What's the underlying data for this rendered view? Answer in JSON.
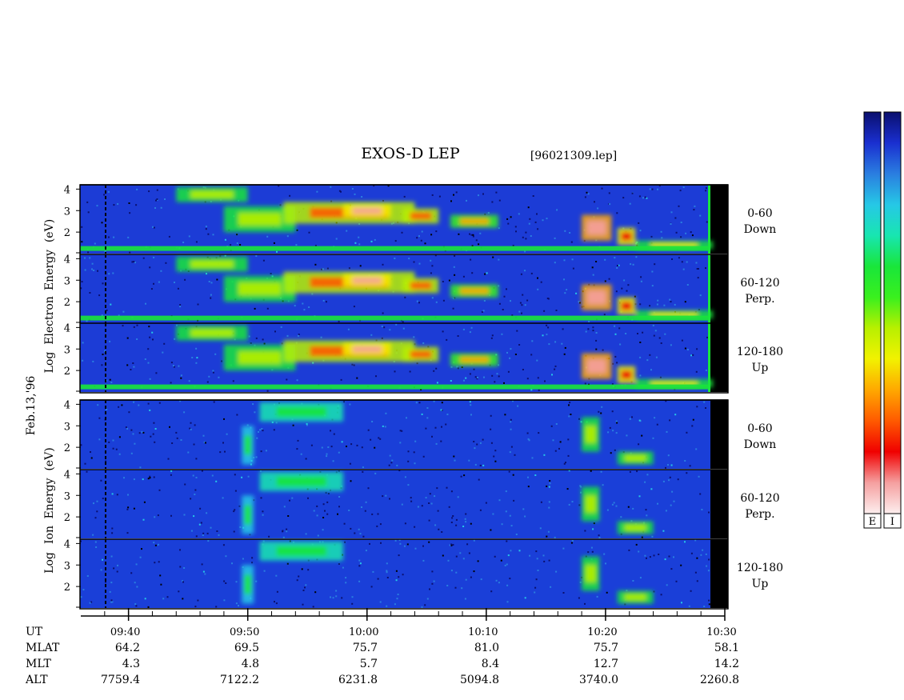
{
  "chart_data": {
    "type": "heatmap",
    "title": "EXOS-D LEP",
    "file_label": "[96021309.lep]",
    "date_label": "Feb.13,'96",
    "x": {
      "unit": "UT",
      "range": [
        "09:36",
        "10:30"
      ],
      "tick_labels": [
        "09:40",
        "09:50",
        "10:00",
        "10:10",
        "10:20",
        "10:30"
      ],
      "tick_times_min": [
        40,
        50,
        60,
        70,
        80,
        90
      ],
      "minor_tick_every_min": 2
    },
    "groups": [
      {
        "name": "electron",
        "ylabel_lines": [
          "Log",
          "Electron",
          "Energy",
          "(eV)"
        ],
        "panels": [
          {
            "label_lines": [
              "0-60",
              "Down"
            ],
            "ylim": [
              1,
              4.2
            ],
            "yticks": [
              "2",
              "3",
              "4"
            ]
          },
          {
            "label_lines": [
              "60-120",
              "Perp."
            ],
            "ylim": [
              1,
              4.2
            ],
            "yticks": [
              "2",
              "3",
              "4"
            ]
          },
          {
            "label_lines": [
              "120-180",
              "Up"
            ],
            "ylim": [
              1,
              4.2
            ],
            "yticks": [
              "2",
              "3",
              "4"
            ]
          }
        ]
      },
      {
        "name": "ion",
        "ylabel_lines": [
          "Log",
          "Ion",
          "Energy",
          "(eV)"
        ],
        "panels": [
          {
            "label_lines": [
              "0-60",
              "Down"
            ],
            "ylim": [
              1,
              4.2
            ],
            "yticks": [
              "2",
              "3",
              "4"
            ]
          },
          {
            "label_lines": [
              "60-120",
              "Perp."
            ],
            "ylim": [
              1,
              4.2
            ],
            "yticks": [
              "2",
              "3",
              "4"
            ]
          },
          {
            "label_lines": [
              "120-180",
              "Up"
            ],
            "ylim": [
              1,
              4.2
            ],
            "yticks": [
              "2",
              "3",
              "4"
            ]
          }
        ]
      }
    ],
    "ephemeris": [
      {
        "label": "UT",
        "values": [
          "",
          "",
          "",
          "",
          "",
          ""
        ]
      },
      {
        "label": "MLAT",
        "values": [
          "64.2",
          "69.5",
          "75.7",
          "81.0",
          "75.7",
          "58.1"
        ]
      },
      {
        "label": "MLT",
        "values": [
          "4.3",
          "4.8",
          "5.7",
          "8.4",
          "12.7",
          "14.2"
        ]
      },
      {
        "label": "ALT",
        "values": [
          "7759.4",
          "7122.2",
          "6231.8",
          "5094.8",
          "3740.0",
          "2260.8"
        ]
      }
    ],
    "color_bars": [
      {
        "label": "E"
      },
      {
        "label": "I"
      }
    ],
    "colorscale": [
      "#0a0f6e",
      "#1a2fd0",
      "#2a7ee0",
      "#26c8e6",
      "#18e6b0",
      "#19e63a",
      "#3af01e",
      "#b8f000",
      "#f2f200",
      "#ffa800",
      "#ff5a00",
      "#f00000",
      "#f5a0a0",
      "#fdeeee"
    ],
    "electron_features": [
      {
        "t0": 44,
        "t1": 50,
        "e0": 3.4,
        "e1": 4.1,
        "level": 0.5
      },
      {
        "t0": 48,
        "t1": 54,
        "e0": 2.0,
        "e1": 3.2,
        "level": 0.55
      },
      {
        "t0": 53,
        "t1": 64,
        "e0": 2.4,
        "e1": 3.4,
        "level": 0.75
      },
      {
        "t0": 58,
        "t1": 62,
        "e0": 2.7,
        "e1": 3.3,
        "level": 0.9
      },
      {
        "t0": 63,
        "t1": 66,
        "e0": 2.4,
        "e1": 3.1,
        "level": 0.8
      },
      {
        "t0": 67,
        "t1": 71,
        "e0": 2.2,
        "e1": 2.8,
        "level": 0.7
      },
      {
        "t0": 78,
        "t1": 80.5,
        "e0": 1.6,
        "e1": 2.8,
        "level": 0.95
      },
      {
        "t0": 81,
        "t1": 82.5,
        "e0": 1.4,
        "e1": 2.2,
        "level": 0.85
      },
      {
        "t0": 82.5,
        "t1": 89,
        "e0": 1.2,
        "e1": 1.6,
        "level": 0.6
      }
    ],
    "ion_features": [
      {
        "t0": 51,
        "t1": 58,
        "e0": 3.2,
        "e1": 4.1,
        "level": 0.4
      },
      {
        "t0": 49.5,
        "t1": 50.5,
        "e0": 1.2,
        "e1": 3.0,
        "level": 0.35
      },
      {
        "t0": 78,
        "t1": 79.5,
        "e0": 1.8,
        "e1": 3.4,
        "level": 0.55
      },
      {
        "t0": 81,
        "t1": 84,
        "e0": 1.2,
        "e1": 1.8,
        "level": 0.5
      }
    ]
  }
}
